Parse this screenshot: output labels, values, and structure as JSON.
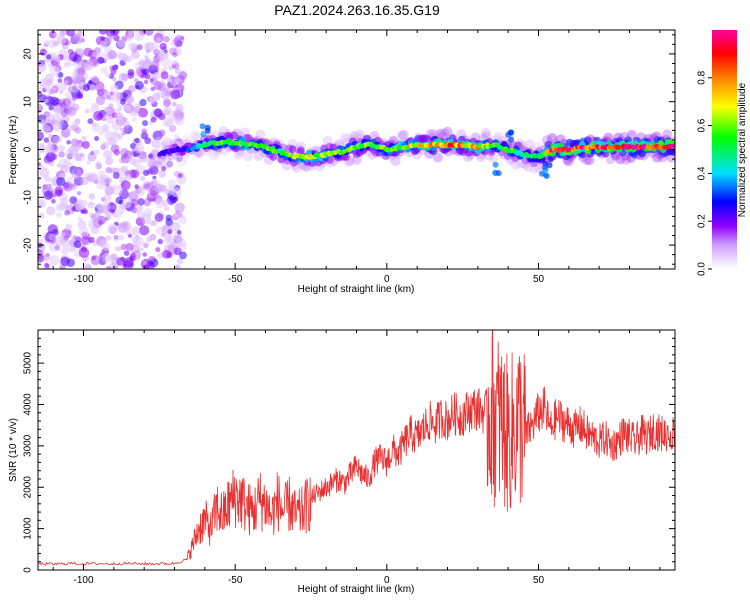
{
  "title": "PAZ1.2024.263.16.35.G19",
  "chart_data": [
    {
      "type": "heatmap",
      "xlabel": "Height of straight line (km)",
      "ylabel": "Frequency (Hz)",
      "xlim": [
        -115,
        95
      ],
      "ylim": [
        -25,
        25
      ],
      "xticks": [
        -100,
        -50,
        0,
        50
      ],
      "yticks": [
        -20,
        -10,
        0,
        10,
        20
      ],
      "colorbar": {
        "label": "Normalized spectral amplitude",
        "range": [
          0,
          1
        ],
        "ticks": [
          "0.0",
          "0.2",
          "0.4",
          "0.6",
          "0.8"
        ],
        "colors": [
          "#ffffff",
          "#9000ff",
          "#0000ff",
          "#00e0ff",
          "#00ff00",
          "#ffff00",
          "#ff8000",
          "#ff0000",
          "#ff00a0"
        ]
      },
      "ridge": {
        "x": [
          -75,
          -70,
          -65,
          -60,
          -55,
          -50,
          -45,
          -40,
          -35,
          -30,
          -25,
          -20,
          -15,
          -10,
          -5,
          0,
          5,
          10,
          15,
          20,
          25,
          30,
          35,
          40,
          45,
          50,
          55,
          60,
          65,
          70,
          75,
          80,
          85,
          90,
          95
        ],
        "frequency_hz": [
          -1,
          0,
          0,
          1,
          1.5,
          1.5,
          1,
          0.5,
          -0.5,
          -1.5,
          -1.5,
          -1,
          -0.5,
          0.5,
          1,
          0,
          0.5,
          1,
          1,
          1,
          1,
          0.5,
          1,
          0,
          -1,
          -1.5,
          0,
          0,
          0.5,
          0.5,
          0.5,
          0.5,
          0.5,
          0.5,
          1
        ],
        "amplitude": [
          0.2,
          0.25,
          0.3,
          0.45,
          0.55,
          0.6,
          0.6,
          0.55,
          0.5,
          0.6,
          0.65,
          0.6,
          0.55,
          0.6,
          0.6,
          0.6,
          0.65,
          0.7,
          0.75,
          0.8,
          0.75,
          0.7,
          0.55,
          0.5,
          0.5,
          0.45,
          0.9,
          0.95,
          0.9,
          0.85,
          0.9,
          0.95,
          0.95,
          0.9,
          0.9
        ]
      },
      "noise_region_x": [
        -115,
        -67
      ]
    },
    {
      "type": "line",
      "xlabel": "Height of straight line (km)",
      "ylabel": "SNR (10 * v/v)",
      "xlim": [
        -115,
        95
      ],
      "ylim": [
        0,
        5800
      ],
      "xticks": [
        -100,
        -50,
        0,
        50
      ],
      "yticks": [
        0,
        1000,
        2000,
        3000,
        4000,
        5000
      ],
      "color": "#e83030",
      "series": [
        {
          "x": [
            -115,
            -110,
            -105,
            -100,
            -95,
            -90,
            -85,
            -80,
            -75,
            -70,
            -66,
            -64,
            -62,
            -60,
            -58,
            -56,
            -54,
            -52,
            -50,
            -48,
            -46,
            -44,
            -42,
            -40,
            -38,
            -36,
            -34,
            -32,
            -30,
            -28,
            -26,
            -24,
            -22,
            -20,
            -18,
            -16,
            -14,
            -12,
            -10,
            -8,
            -6,
            -4,
            -2,
            0,
            2,
            4,
            6,
            8,
            10,
            12,
            14,
            16,
            18,
            20,
            22,
            24,
            26,
            28,
            30,
            32,
            34,
            36,
            38,
            40,
            42,
            44,
            46,
            48,
            50,
            52,
            54,
            56,
            58,
            60,
            62,
            64,
            66,
            68,
            70,
            72,
            74,
            76,
            78,
            80,
            82,
            84,
            86,
            88,
            90,
            92,
            95
          ],
          "y": [
            150,
            140,
            160,
            150,
            155,
            150,
            160,
            150,
            150,
            160,
            250,
            600,
            1000,
            1200,
            1000,
            1500,
            1300,
            1600,
            1800,
            1700,
            1500,
            1400,
            1700,
            1600,
            1300,
            1700,
            1400,
            1600,
            1300,
            1400,
            1600,
            1800,
            1900,
            2000,
            2100,
            2200,
            2100,
            2300,
            2500,
            2300,
            2200,
            2600,
            2700,
            2600,
            2900,
            2800,
            3100,
            3300,
            3200,
            3400,
            3600,
            3500,
            3700,
            3600,
            3800,
            3700,
            3800,
            3900,
            3900,
            3800,
            3900,
            3700,
            3500,
            3200,
            3400,
            3600,
            3300,
            3500,
            3800,
            3900,
            3400,
            3700,
            3600,
            3500,
            3400,
            3500,
            3300,
            3200,
            3100,
            3200,
            3000,
            3100,
            3300,
            3200,
            3100,
            3300,
            3200,
            3400,
            3300,
            3300,
            3300
          ]
        }
      ]
    }
  ]
}
